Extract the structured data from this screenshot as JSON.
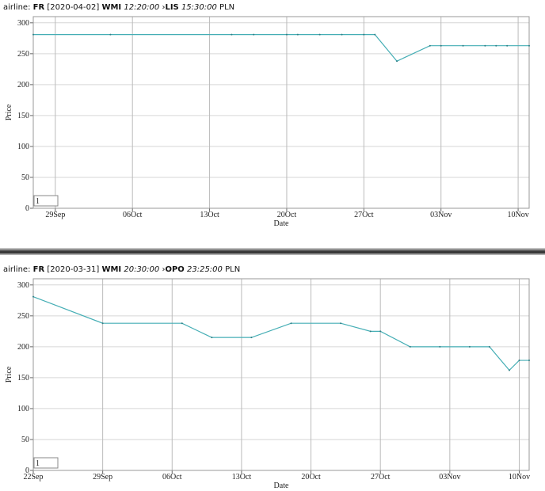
{
  "chart_data": [
    {
      "type": "line",
      "header": {
        "label": "airline:",
        "airline": "FR",
        "date": "[2020-04-02]",
        "from": "WMI",
        "dep": "12:20:00",
        "to": "LIS",
        "arr": "15:30:00",
        "currency": "PLN"
      },
      "y_label": "Price",
      "x_label": "Date",
      "input_value": "1",
      "color": "#45aeb5",
      "x": [
        "09-27",
        "10-04",
        "10-15",
        "10-17",
        "10-20",
        "10-21",
        "10-23",
        "10-25",
        "10-27",
        "10-28",
        "10-30",
        "11-02",
        "11-03",
        "11-05",
        "11-07",
        "11-08",
        "11-09",
        "11-11"
      ],
      "values": [
        281,
        281,
        281,
        281,
        281,
        281,
        281,
        281,
        281,
        281,
        238,
        263,
        263,
        263,
        263,
        263,
        263,
        263
      ],
      "xlim": [
        "09-27",
        "11-11"
      ],
      "xticks": [
        {
          "value": "09-29",
          "label": "29Sep"
        },
        {
          "value": "10-06",
          "label": "06Oct"
        },
        {
          "value": "10-13",
          "label": "13Oct"
        },
        {
          "value": "10-20",
          "label": "20Oct"
        },
        {
          "value": "10-27",
          "label": "27Oct"
        },
        {
          "value": "11-03",
          "label": "03Nov"
        },
        {
          "value": "11-10",
          "label": "10Nov"
        }
      ],
      "ylim": [
        0,
        310
      ],
      "yticks": [
        0,
        50,
        100,
        150,
        200,
        250,
        300
      ],
      "grid": true
    },
    {
      "type": "line",
      "header": {
        "label": "airline:",
        "airline": "FR",
        "date": "[2020-03-31]",
        "from": "WMI",
        "dep": "20:30:00",
        "to": "OPO",
        "arr": "23:25:00",
        "currency": "PLN"
      },
      "y_label": "Price",
      "x_label": "Date",
      "input_value": "1",
      "color": "#45aeb5",
      "x": [
        "09-22",
        "09-29",
        "10-07",
        "10-10",
        "10-14",
        "10-18",
        "10-23",
        "10-26",
        "10-27",
        "10-30",
        "11-02",
        "11-05",
        "11-07",
        "11-09",
        "11-10",
        "11-11"
      ],
      "values": [
        281,
        238,
        238,
        215,
        215,
        238,
        238,
        225,
        225,
        200,
        200,
        200,
        200,
        162,
        178,
        178
      ],
      "xlim": [
        "09-22",
        "11-11"
      ],
      "xticks": [
        {
          "value": "09-22",
          "label": "22Sep"
        },
        {
          "value": "09-29",
          "label": "29Sep"
        },
        {
          "value": "10-06",
          "label": "06Oct"
        },
        {
          "value": "10-13",
          "label": "13Oct"
        },
        {
          "value": "10-20",
          "label": "20Oct"
        },
        {
          "value": "10-27",
          "label": "27Oct"
        },
        {
          "value": "11-03",
          "label": "03Nov"
        },
        {
          "value": "11-10",
          "label": "10Nov"
        }
      ],
      "ylim": [
        0,
        310
      ],
      "yticks": [
        0,
        50,
        100,
        150,
        200,
        250,
        300
      ],
      "grid": true
    }
  ]
}
